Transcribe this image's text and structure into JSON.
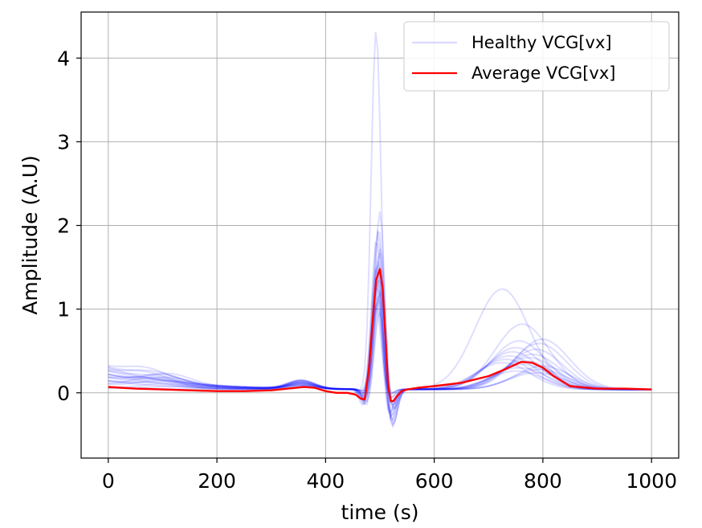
{
  "chart_data": {
    "type": "line",
    "title": "",
    "xlabel": "time (s)",
    "ylabel": "Amplitude (A.U)",
    "xlim": [
      -50,
      1050
    ],
    "ylim": [
      -0.78,
      4.55
    ],
    "xticks": [
      0,
      200,
      400,
      600,
      800,
      1000
    ],
    "yticks": [
      0,
      1,
      2,
      3,
      4
    ],
    "xtick_labels": [
      "0",
      "200",
      "400",
      "600",
      "800",
      "1000"
    ],
    "ytick_labels": [
      "0",
      "1",
      "2",
      "3",
      "4"
    ],
    "grid": true,
    "legend": {
      "placement": "top-right",
      "entries": [
        "Healthy VCG[vx]",
        "Average VCG[vx]"
      ]
    },
    "colors": {
      "healthy": "#0000ff",
      "average": "#ff0000",
      "grid": "#b0b0b0"
    },
    "series": [
      {
        "name": "Average VCG[vx]",
        "x": [
          0,
          50,
          100,
          150,
          200,
          250,
          300,
          330,
          360,
          380,
          400,
          420,
          440,
          455,
          465,
          472,
          480,
          487,
          493,
          500,
          505,
          510,
          515,
          520,
          525,
          530,
          540,
          550,
          570,
          600,
          650,
          700,
          730,
          760,
          780,
          800,
          820,
          850,
          900,
          950,
          1000
        ],
        "values": [
          0.07,
          0.05,
          0.04,
          0.03,
          0.02,
          0.02,
          0.03,
          0.05,
          0.07,
          0.06,
          0.02,
          0.0,
          0.0,
          -0.02,
          -0.07,
          -0.08,
          0.3,
          0.9,
          1.35,
          1.48,
          1.25,
          0.7,
          0.1,
          -0.1,
          -0.1,
          -0.05,
          0.02,
          0.04,
          0.06,
          0.08,
          0.12,
          0.2,
          0.28,
          0.37,
          0.36,
          0.3,
          0.2,
          0.08,
          0.05,
          0.05,
          0.04
        ]
      },
      {
        "name": "Healthy VCG[vx]",
        "count": 20,
        "peak_values_at_r_wave": [
          4.3,
          2.15,
          1.95,
          1.9,
          1.8,
          1.7,
          1.65,
          1.55,
          1.5,
          1.45,
          1.4,
          1.35,
          1.3,
          1.25,
          1.2,
          1.15,
          1.1,
          1.05,
          1.0,
          0.95
        ],
        "t_wave_peak_values": [
          1.2,
          0.78,
          0.6,
          0.58,
          0.55,
          0.5,
          0.48,
          0.45,
          0.42,
          0.4,
          0.38,
          0.36,
          0.34,
          0.32,
          0.3,
          0.28,
          0.26,
          0.24,
          0.22,
          0.2
        ],
        "min_value": -0.52
      }
    ]
  }
}
